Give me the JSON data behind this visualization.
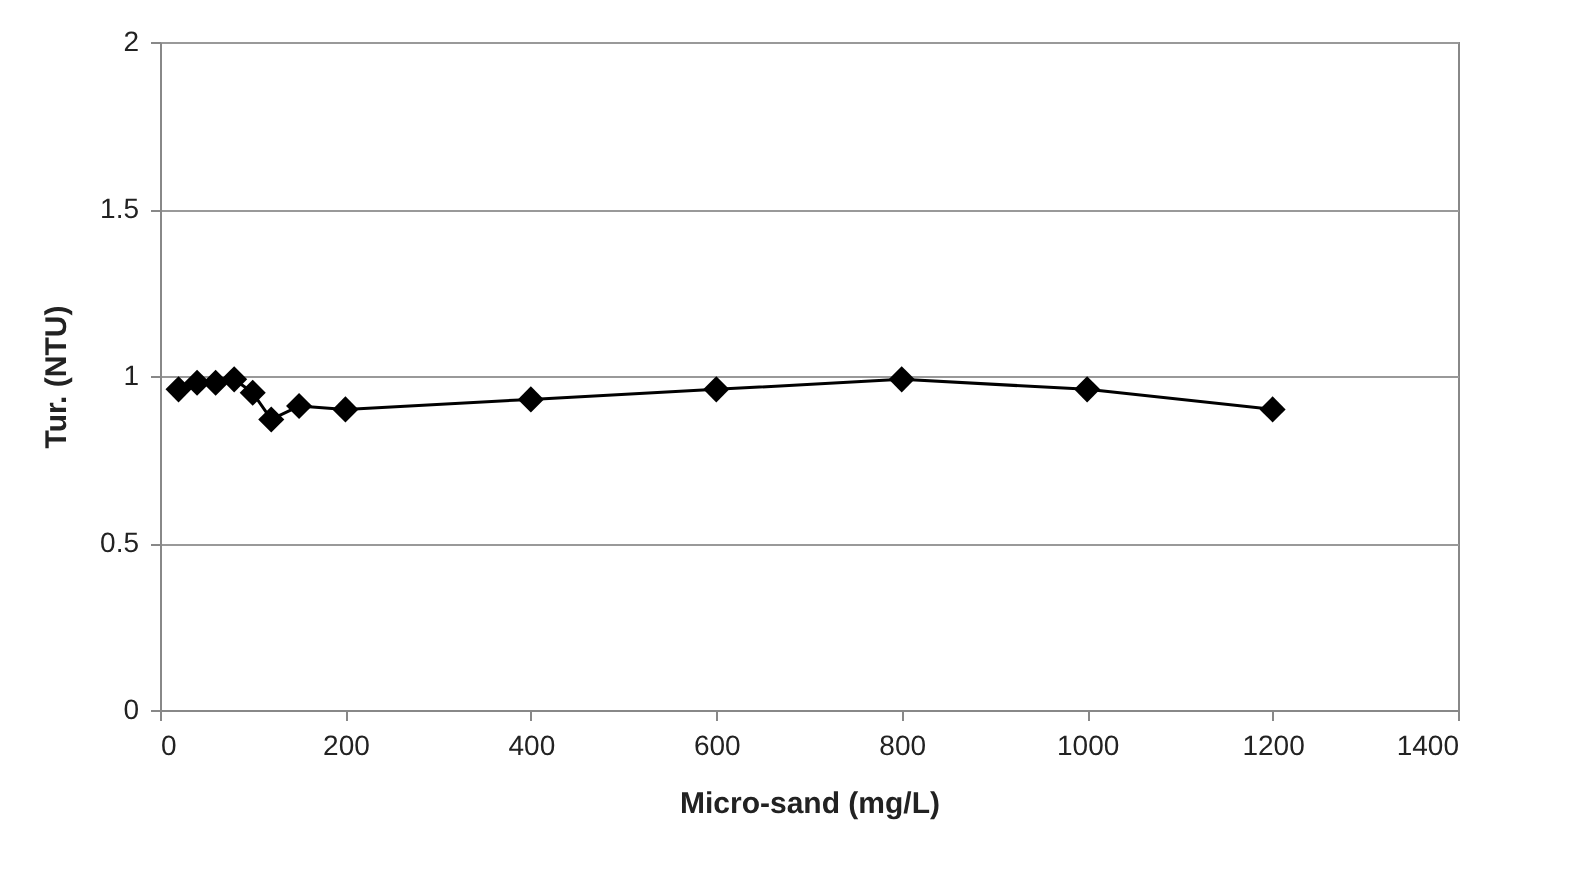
{
  "chart_data": {
    "type": "line",
    "xlabel": "Micro-sand (mg/L)",
    "ylabel": "Tur. (NTU)",
    "x": [
      20,
      40,
      60,
      80,
      100,
      120,
      150,
      200,
      400,
      600,
      800,
      1000,
      1200
    ],
    "series": [
      {
        "color": "#000000",
        "values": [
          0.96,
          0.98,
          0.98,
          0.99,
          0.95,
          0.87,
          0.91,
          0.9,
          0.93,
          0.96,
          0.99,
          0.96,
          0.9
        ]
      }
    ],
    "xlim": [
      0,
      1400
    ],
    "xticks": [
      0,
      200,
      400,
      600,
      800,
      1000,
      1200,
      1400
    ],
    "ylim": [
      0,
      2
    ],
    "yticks": [
      0,
      0.5,
      1,
      1.5,
      2
    ],
    "grid": "y",
    "marker": "diamond",
    "line_style": "solid",
    "legend": false
  }
}
